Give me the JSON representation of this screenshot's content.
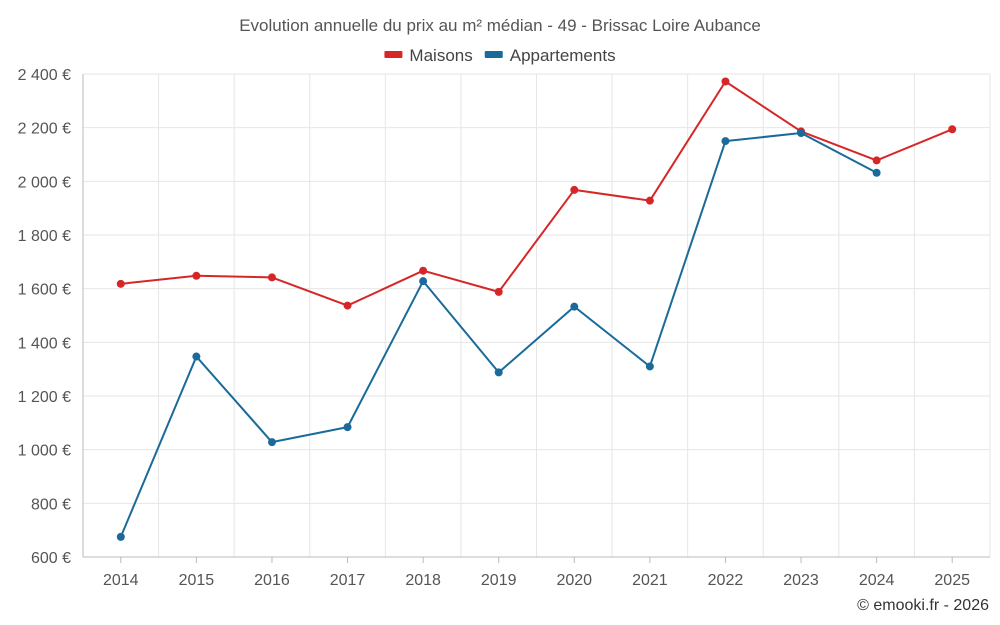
{
  "chart_data": {
    "type": "line",
    "title": "Evolution annuelle du prix au m² médian - 49 - Brissac Loire Aubance",
    "categories": [
      "2014",
      "2015",
      "2016",
      "2017",
      "2018",
      "2019",
      "2020",
      "2021",
      "2022",
      "2023",
      "2024",
      "2025"
    ],
    "y_ticks": [
      600,
      800,
      1000,
      1200,
      1400,
      1600,
      1800,
      2000,
      2200,
      2400
    ],
    "y_tick_labels": [
      "600 €",
      "800 €",
      "1 000 €",
      "1 200 €",
      "1 400 €",
      "1 600 €",
      "1 800 €",
      "2 000 €",
      "2 200 €",
      "2 400 €"
    ],
    "ylim": [
      600,
      2400
    ],
    "xlabel": "",
    "ylabel": "",
    "grid": true,
    "legend_position": "top-center",
    "series": [
      {
        "name": "Maisons",
        "color": "#d62728",
        "values": [
          1618,
          1648,
          1642,
          1537,
          1667,
          1588,
          1968,
          1928,
          2372,
          2186,
          2078,
          2194
        ]
      },
      {
        "name": "Appartements",
        "color": "#1a6a9a",
        "values": [
          675,
          1347,
          1028,
          1084,
          1628,
          1288,
          1533,
          1310,
          2150,
          2180,
          2032,
          null
        ]
      }
    ]
  },
  "credit": "© emooki.fr - 2026"
}
